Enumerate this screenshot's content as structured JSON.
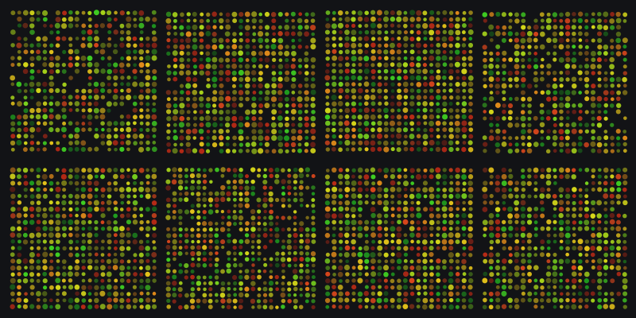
{
  "image": {
    "kind": "two-colour DNA microarray scan",
    "background_color": "#121316",
    "grid_layout": {
      "block_rows": 2,
      "block_columns": 4
    },
    "spot_palette": [
      "#1f9d1f",
      "#3fcf22",
      "#78d21e",
      "#a8d51a",
      "#d6d81a",
      "#e2c11a",
      "#e08a1a",
      "#d9461c",
      "#b82a16"
    ]
  }
}
